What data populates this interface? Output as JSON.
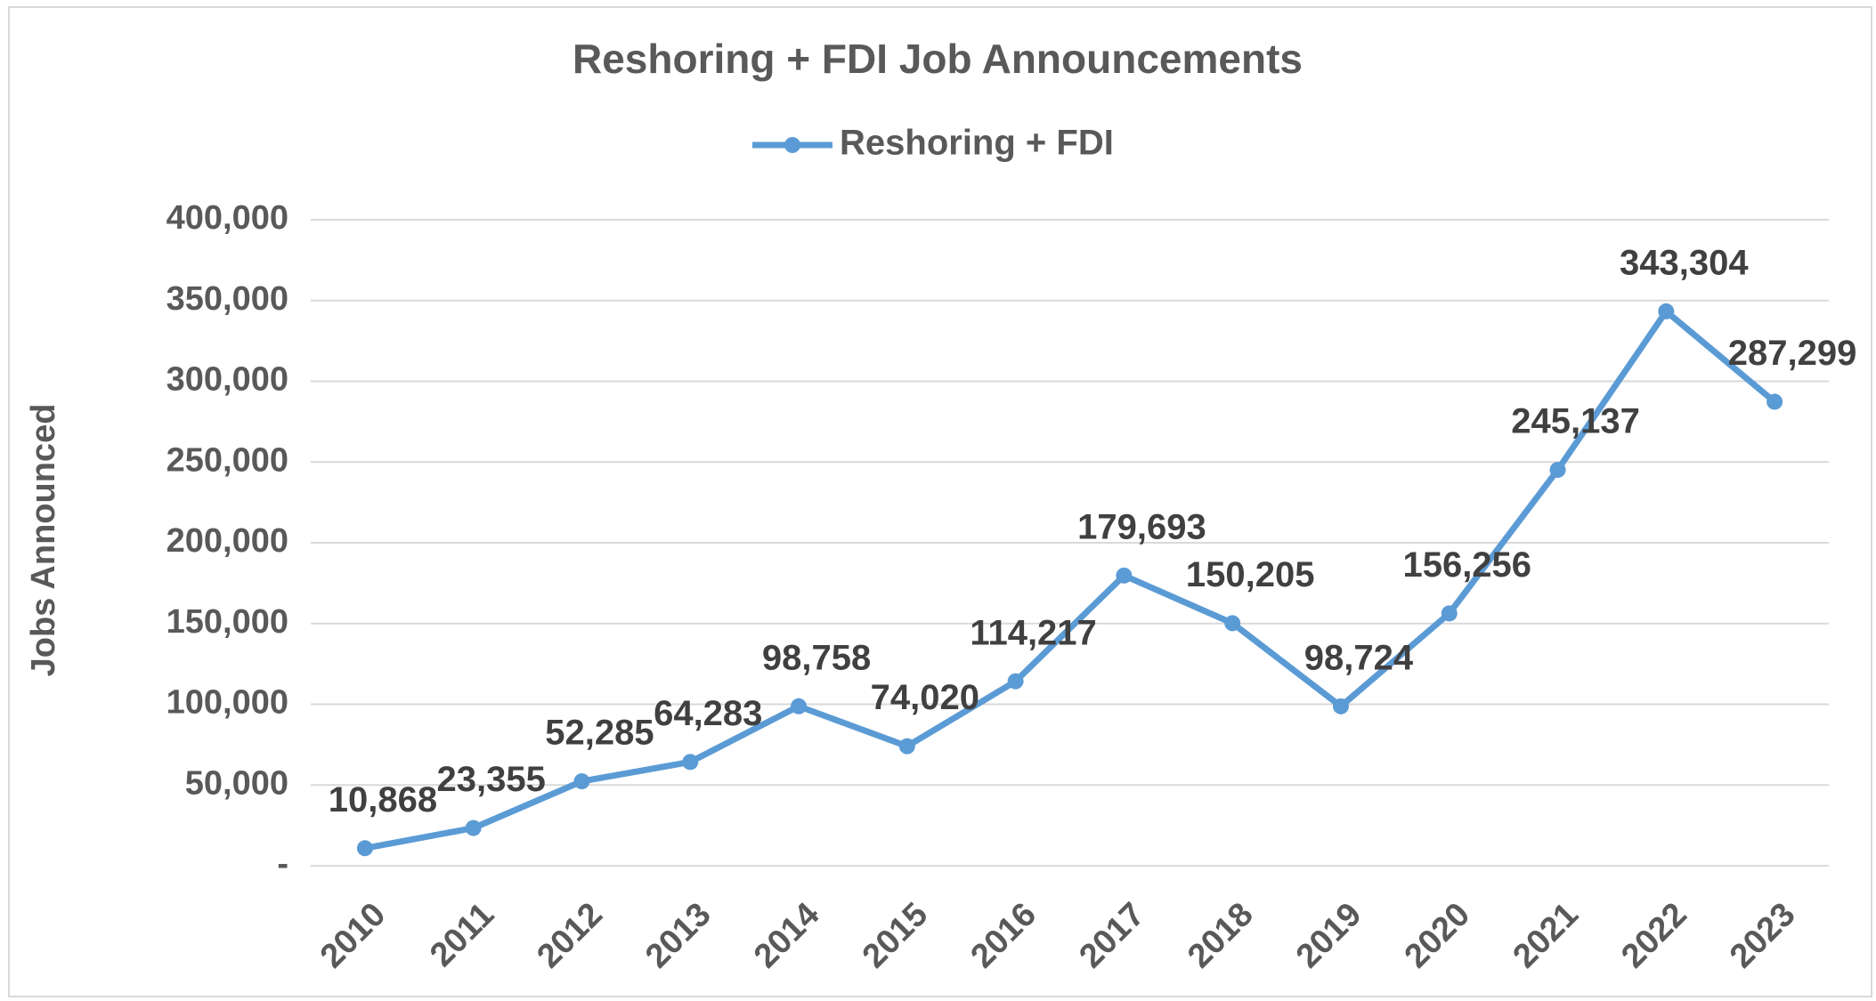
{
  "chart_data": {
    "type": "line",
    "title": "Reshoring + FDI Job Announcements",
    "y_label": "Jobs Announced",
    "categories": [
      "2010",
      "2011",
      "2012",
      "2013",
      "2014",
      "2015",
      "2016",
      "2017",
      "2018",
      "2019",
      "2020",
      "2021",
      "2022",
      "2023"
    ],
    "series": [
      {
        "name": "Reshoring + FDI",
        "color": "#5b9bd5",
        "values": [
          10868,
          23355,
          52285,
          64283,
          98758,
          74020,
          114217,
          179693,
          150205,
          98724,
          156256,
          245137,
          343304,
          287299
        ],
        "value_labels": [
          "10,868",
          "23,355",
          "52,285",
          "64,283",
          "98,758",
          "74,020",
          "114,217",
          "179,693",
          "150,205",
          "98,724",
          "156,256",
          "245,137",
          "343,304",
          "287,299"
        ]
      }
    ],
    "ylim": [
      0,
      400000
    ],
    "yticks": [
      {
        "value": 0,
        "label": "-"
      },
      {
        "value": 50000,
        "label": "50,000"
      },
      {
        "value": 100000,
        "label": "100,000"
      },
      {
        "value": 150000,
        "label": "150,000"
      },
      {
        "value": 200000,
        "label": "200,000"
      },
      {
        "value": 250000,
        "label": "250,000"
      },
      {
        "value": 300000,
        "label": "300,000"
      },
      {
        "value": 350000,
        "label": "350,000"
      },
      {
        "value": 400000,
        "label": "400,000"
      }
    ],
    "grid": true,
    "legend": "top"
  }
}
